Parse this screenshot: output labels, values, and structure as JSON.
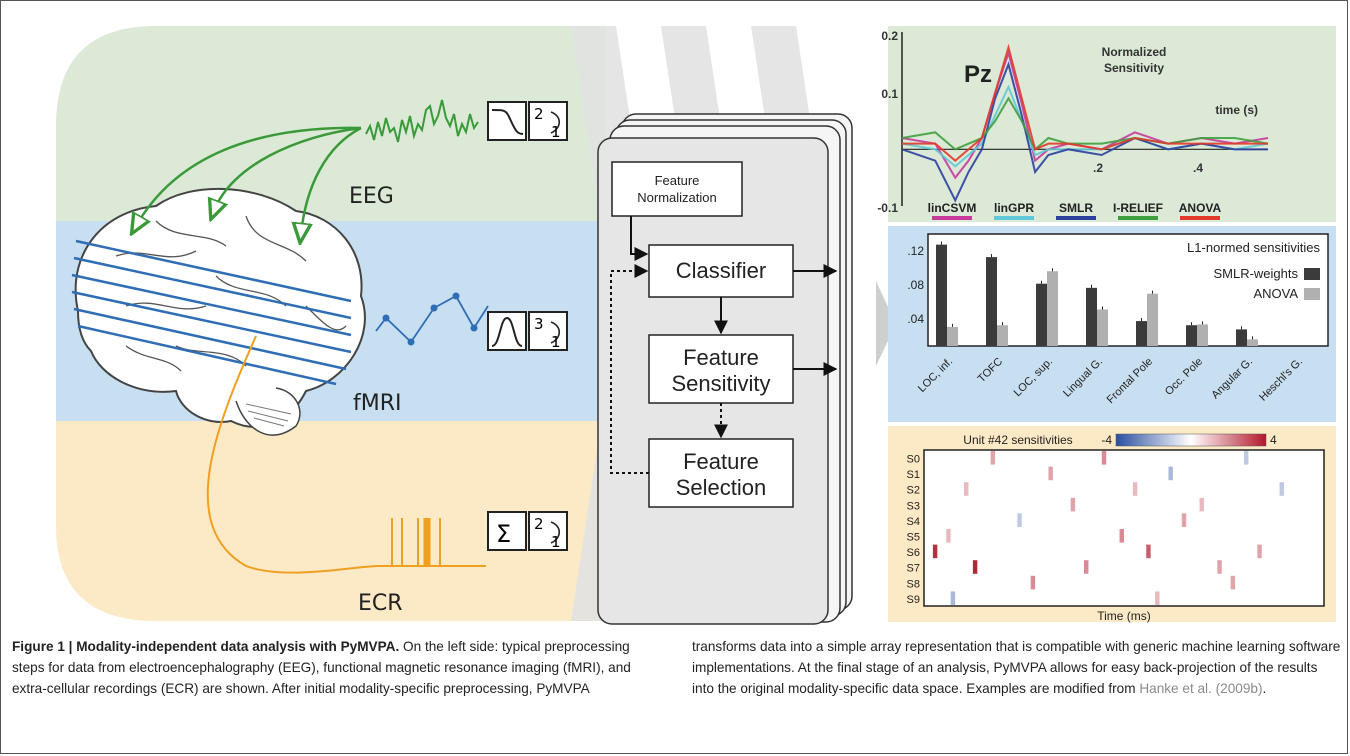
{
  "modalities": {
    "eeg": "EEG",
    "fmri": "fMRI",
    "ecr": "ECR"
  },
  "preprocessing_icons": {
    "eeg_filter": "lowpass-filter-icon",
    "fmri_filter": "bandpass-filter-icon",
    "ecr_filter": "sum-icon",
    "eeg_resample_top": "2",
    "eeg_resample_bottom": "1",
    "fmri_resample_top": "3",
    "fmri_resample_bottom": "1",
    "ecr_resample_top": "2",
    "ecr_resample_bottom": "1",
    "sigma": "Σ"
  },
  "pipeline": {
    "normalization_line1": "Feature",
    "normalization_line2": "Normalization",
    "classifier": "Classifier",
    "sensitivity_line1": "Feature",
    "sensitivity_line2": "Sensitivity",
    "selection_line1": "Feature",
    "selection_line2": "Selection"
  },
  "colors": {
    "eeg_band": "#dbe9d6",
    "fmri_band": "#c7dff0",
    "ecr_band": "#fce9c6",
    "eeg_trace": "#3a9a3a",
    "fmri_trace": "#2f6db5",
    "ecr_trace": "#f0a020"
  },
  "chart_data": [
    {
      "type": "line",
      "title": "Pz",
      "annotation_line1": "Normalized",
      "annotation_line2": "Sensitivity",
      "xlabel": "time (s)",
      "xticks": [
        ".2",
        ".4"
      ],
      "yticks": [
        "0.2",
        "0.1",
        "-0.1"
      ],
      "ylim": [
        -0.1,
        0.2
      ],
      "xlim": [
        0,
        0.55
      ],
      "series": [
        {
          "name": "linCSVM",
          "color": "#c73a9c",
          "x": [
            0,
            0.05,
            0.08,
            0.1,
            0.12,
            0.14,
            0.16,
            0.18,
            0.2,
            0.22,
            0.25,
            0.3,
            0.35,
            0.4,
            0.45,
            0.5,
            0.55
          ],
          "values": [
            0.02,
            0.01,
            -0.05,
            -0.02,
            0.02,
            0.1,
            0.17,
            0.08,
            -0.02,
            0.0,
            0.01,
            0.0,
            0.03,
            0.01,
            0.02,
            0.01,
            0.02
          ]
        },
        {
          "name": "linGPR",
          "color": "#5ec8d6",
          "x": [
            0,
            0.05,
            0.08,
            0.1,
            0.12,
            0.14,
            0.16,
            0.18,
            0.2,
            0.22,
            0.25,
            0.3,
            0.35,
            0.4,
            0.45,
            0.5,
            0.55
          ],
          "values": [
            0.01,
            0.0,
            -0.03,
            -0.01,
            0.01,
            0.06,
            0.11,
            0.05,
            -0.01,
            0.0,
            0.0,
            0.0,
            0.02,
            0.0,
            0.01,
            0.0,
            0.01
          ]
        },
        {
          "name": "SMLR",
          "color": "#2c3f9e",
          "x": [
            0,
            0.05,
            0.08,
            0.1,
            0.12,
            0.14,
            0.16,
            0.18,
            0.2,
            0.22,
            0.25,
            0.3,
            0.35,
            0.4,
            0.45,
            0.5,
            0.55
          ],
          "values": [
            0.0,
            -0.02,
            -0.09,
            -0.04,
            0.0,
            0.09,
            0.15,
            0.06,
            -0.04,
            -0.01,
            0.0,
            -0.01,
            0.02,
            0.0,
            0.01,
            0.0,
            0.0
          ]
        },
        {
          "name": "I-RELIEF",
          "color": "#3fa03f",
          "x": [
            0,
            0.05,
            0.08,
            0.1,
            0.12,
            0.14,
            0.16,
            0.18,
            0.2,
            0.22,
            0.25,
            0.3,
            0.35,
            0.4,
            0.45,
            0.5,
            0.55
          ],
          "values": [
            0.02,
            0.03,
            0.0,
            0.01,
            0.02,
            0.05,
            0.09,
            0.05,
            0.0,
            0.02,
            0.01,
            0.01,
            0.02,
            0.01,
            0.02,
            0.02,
            0.01
          ]
        },
        {
          "name": "ANOVA",
          "color": "#e23a2a",
          "x": [
            0,
            0.05,
            0.08,
            0.1,
            0.12,
            0.14,
            0.16,
            0.18,
            0.2,
            0.22,
            0.25,
            0.3,
            0.35,
            0.4,
            0.45,
            0.5,
            0.55
          ],
          "values": [
            0.01,
            0.01,
            -0.02,
            0.0,
            0.02,
            0.1,
            0.18,
            0.09,
            0.0,
            0.01,
            0.01,
            0.0,
            0.02,
            0.01,
            0.01,
            0.01,
            0.01
          ]
        }
      ]
    },
    {
      "type": "bar",
      "title": "L1-normed sensitivities",
      "categories": [
        "LOC, inf.",
        "TOFC",
        "LOC, sup.",
        "Lingual G.",
        "Frontal Pole",
        "Occ. Pole",
        "Angular G.",
        "Heschl's G."
      ],
      "yticks": [
        ".12",
        ".08",
        ".04"
      ],
      "ylim": [
        0,
        0.13
      ],
      "series": [
        {
          "name": "SMLR-weights",
          "color": "#3b3b3b",
          "values": [
            0.122,
            0.107,
            0.075,
            0.07,
            0.03,
            0.025,
            0.02,
            0.0
          ]
        },
        {
          "name": "ANOVA",
          "color": "#b0b0b0",
          "values": [
            0.023,
            0.025,
            0.09,
            0.044,
            0.063,
            0.026,
            0.008,
            0.0
          ]
        }
      ]
    },
    {
      "type": "heatmap",
      "title": "Unit #42 sensitivities",
      "colorbar_min": "-4",
      "colorbar_max": "4",
      "xlabel": "Time (ms)",
      "rows": [
        "S0",
        "S1",
        "S2",
        "S3",
        "S4",
        "S5",
        "S6",
        "S7",
        "S8",
        "S9"
      ],
      "cells": [
        {
          "row": 0,
          "col": 15,
          "v": 0.4
        },
        {
          "row": 0,
          "col": 40,
          "v": 0.5
        },
        {
          "row": 0,
          "col": 72,
          "v": -0.3
        },
        {
          "row": 1,
          "col": 28,
          "v": 0.4
        },
        {
          "row": 1,
          "col": 55,
          "v": -0.4
        },
        {
          "row": 2,
          "col": 9,
          "v": 0.3
        },
        {
          "row": 2,
          "col": 47,
          "v": 0.3
        },
        {
          "row": 2,
          "col": 80,
          "v": -0.3
        },
        {
          "row": 3,
          "col": 33,
          "v": 0.4
        },
        {
          "row": 3,
          "col": 62,
          "v": 0.3
        },
        {
          "row": 4,
          "col": 21,
          "v": -0.3
        },
        {
          "row": 4,
          "col": 58,
          "v": 0.4
        },
        {
          "row": 5,
          "col": 5,
          "v": 0.3
        },
        {
          "row": 5,
          "col": 44,
          "v": 0.5
        },
        {
          "row": 6,
          "col": 2,
          "v": 0.9
        },
        {
          "row": 6,
          "col": 50,
          "v": 0.7
        },
        {
          "row": 6,
          "col": 75,
          "v": 0.4
        },
        {
          "row": 7,
          "col": 11,
          "v": 0.95
        },
        {
          "row": 7,
          "col": 36,
          "v": 0.5
        },
        {
          "row": 7,
          "col": 66,
          "v": 0.4
        },
        {
          "row": 8,
          "col": 24,
          "v": 0.5
        },
        {
          "row": 8,
          "col": 69,
          "v": 0.4
        },
        {
          "row": 9,
          "col": 6,
          "v": -0.4
        },
        {
          "row": 9,
          "col": 52,
          "v": 0.3
        }
      ]
    }
  ],
  "caption": {
    "label": "Figure 1 | Modality-independent data analysis with PyMVPA.",
    "left_text": "On the left side: typical preprocessing steps for data from electroencephalography (EEG), functional magnetic resonance imaging (fMRI), and extra-cellular recordings (ECR) are shown. After initial modality-specific preprocessing, PyMVPA",
    "right_text": "transforms data into a simple array representation that is compatible with generic machine learning software implementations. At the final stage of an analysis, PyMVPA allows for easy back-projection of the results into the original modality-specific data space. Examples are modified from",
    "reference": "Hanke et al. (2009b)",
    "right_end": "."
  }
}
